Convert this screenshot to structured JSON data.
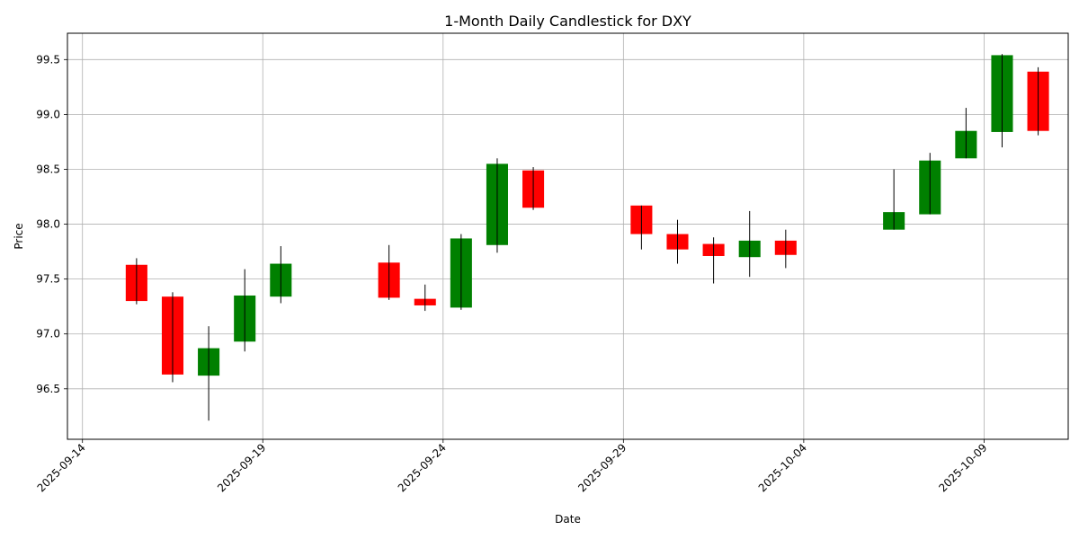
{
  "chart_data": {
    "type": "candlestick",
    "title": "1-Month Daily Candlestick for DXY",
    "xlabel": "Date",
    "ylabel": "Price",
    "grid": true,
    "ylim": [
      96.04,
      99.74
    ],
    "xlim": [
      "2025-09-13T14:00",
      "2025-10-11T08:00"
    ],
    "y_ticks": [
      96.5,
      97.0,
      97.5,
      98.0,
      98.5,
      99.0,
      99.5
    ],
    "y_tick_labels": [
      "96.5",
      "97.0",
      "97.5",
      "98.0",
      "98.5",
      "99.0",
      "99.5"
    ],
    "x_ticks": [
      "2025-09-14",
      "2025-09-19",
      "2025-09-24",
      "2025-09-29",
      "2025-10-04",
      "2025-10-09"
    ],
    "colors": {
      "up": "#008000",
      "down": "#ff0000",
      "wick": "#000000",
      "grid": "#b0b0b0"
    },
    "candles": [
      {
        "date": "2025-09-15",
        "open": 97.63,
        "high": 97.69,
        "low": 97.27,
        "close": 97.3
      },
      {
        "date": "2025-09-16",
        "open": 97.34,
        "high": 97.38,
        "low": 96.56,
        "close": 96.63
      },
      {
        "date": "2025-09-17",
        "open": 96.62,
        "high": 97.07,
        "low": 96.21,
        "close": 96.87
      },
      {
        "date": "2025-09-18",
        "open": 96.93,
        "high": 97.59,
        "low": 96.84,
        "close": 97.35
      },
      {
        "date": "2025-09-19",
        "open": 97.34,
        "high": 97.8,
        "low": 97.28,
        "close": 97.64
      },
      {
        "date": "2025-09-22",
        "open": 97.65,
        "high": 97.81,
        "low": 97.31,
        "close": 97.33
      },
      {
        "date": "2025-09-23",
        "open": 97.32,
        "high": 97.45,
        "low": 97.21,
        "close": 97.26
      },
      {
        "date": "2025-09-24",
        "open": 97.24,
        "high": 97.91,
        "low": 97.22,
        "close": 97.87
      },
      {
        "date": "2025-09-25",
        "open": 97.81,
        "high": 98.6,
        "low": 97.74,
        "close": 98.55
      },
      {
        "date": "2025-09-26",
        "open": 98.49,
        "high": 98.52,
        "low": 98.13,
        "close": 98.15
      },
      {
        "date": "2025-09-29",
        "open": 98.17,
        "high": 98.17,
        "low": 97.77,
        "close": 97.91
      },
      {
        "date": "2025-09-30",
        "open": 97.91,
        "high": 98.04,
        "low": 97.64,
        "close": 97.77
      },
      {
        "date": "2025-10-01",
        "open": 97.82,
        "high": 97.88,
        "low": 97.46,
        "close": 97.71
      },
      {
        "date": "2025-10-02",
        "open": 97.7,
        "high": 98.12,
        "low": 97.52,
        "close": 97.85
      },
      {
        "date": "2025-10-03",
        "open": 97.85,
        "high": 97.95,
        "low": 97.6,
        "close": 97.72
      },
      {
        "date": "2025-10-06",
        "open": 97.95,
        "high": 98.5,
        "low": 97.95,
        "close": 98.11
      },
      {
        "date": "2025-10-07",
        "open": 98.09,
        "high": 98.65,
        "low": 98.09,
        "close": 98.58
      },
      {
        "date": "2025-10-08",
        "open": 98.6,
        "high": 99.06,
        "low": 98.6,
        "close": 98.85
      },
      {
        "date": "2025-10-09",
        "open": 98.84,
        "high": 99.55,
        "low": 98.7,
        "close": 99.54
      },
      {
        "date": "2025-10-10",
        "open": 99.39,
        "high": 99.43,
        "low": 98.81,
        "close": 98.85
      }
    ]
  }
}
